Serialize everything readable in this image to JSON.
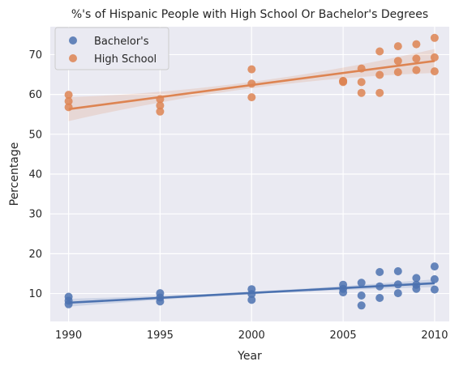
{
  "chart_data": {
    "type": "scatter",
    "title": "%'s of Hispanic People with High School Or Bachelor's Degrees",
    "xlabel": "Year",
    "ylabel": "Percentage",
    "xlim": [
      1989,
      2010.8
    ],
    "ylim": [
      3,
      77
    ],
    "xticks": [
      1990,
      1995,
      2000,
      2005,
      2010
    ],
    "yticks": [
      10,
      20,
      30,
      40,
      50,
      60,
      70
    ],
    "grid": true,
    "legend_position": "top-left",
    "series": [
      {
        "name": "Bachelor's",
        "color": "#4c72b0",
        "x": [
          1990,
          1990,
          1990,
          1995,
          1995,
          1995,
          2000,
          2000,
          2000,
          2005,
          2005,
          2005,
          2006,
          2006,
          2006,
          2007,
          2007,
          2007,
          2008,
          2008,
          2008,
          2009,
          2009,
          2009,
          2010,
          2010,
          2010
        ],
        "y": [
          7.3,
          8.2,
          9.2,
          8.0,
          9.0,
          10.1,
          8.4,
          9.9,
          11.1,
          10.3,
          11.2,
          12.2,
          7.0,
          9.5,
          12.7,
          8.9,
          11.8,
          15.4,
          10.1,
          12.3,
          15.6,
          11.2,
          12.2,
          13.9,
          11.0,
          13.6,
          16.8
        ],
        "trend": {
          "x": [
            1990,
            2010
          ],
          "y": [
            7.7,
            12.6
          ]
        }
      },
      {
        "name": "High School",
        "color": "#dd8452",
        "x": [
          1990,
          1990,
          1990,
          1995,
          1995,
          1995,
          2000,
          2000,
          2000,
          2005,
          2005,
          2005,
          2006,
          2006,
          2006,
          2007,
          2007,
          2007,
          2008,
          2008,
          2008,
          2009,
          2009,
          2009,
          2010,
          2010,
          2010
        ],
        "y": [
          56.8,
          58.3,
          59.9,
          55.7,
          57.2,
          58.8,
          59.3,
          62.7,
          66.3,
          63.1,
          63.3,
          63.4,
          60.4,
          63.1,
          66.5,
          60.4,
          64.9,
          70.8,
          65.6,
          68.4,
          72.1,
          66.1,
          69.0,
          72.6,
          65.8,
          69.3,
          74.2
        ],
        "trend": {
          "x": [
            1990,
            2010
          ],
          "y": [
            56.3,
            68.4
          ]
        }
      }
    ]
  }
}
